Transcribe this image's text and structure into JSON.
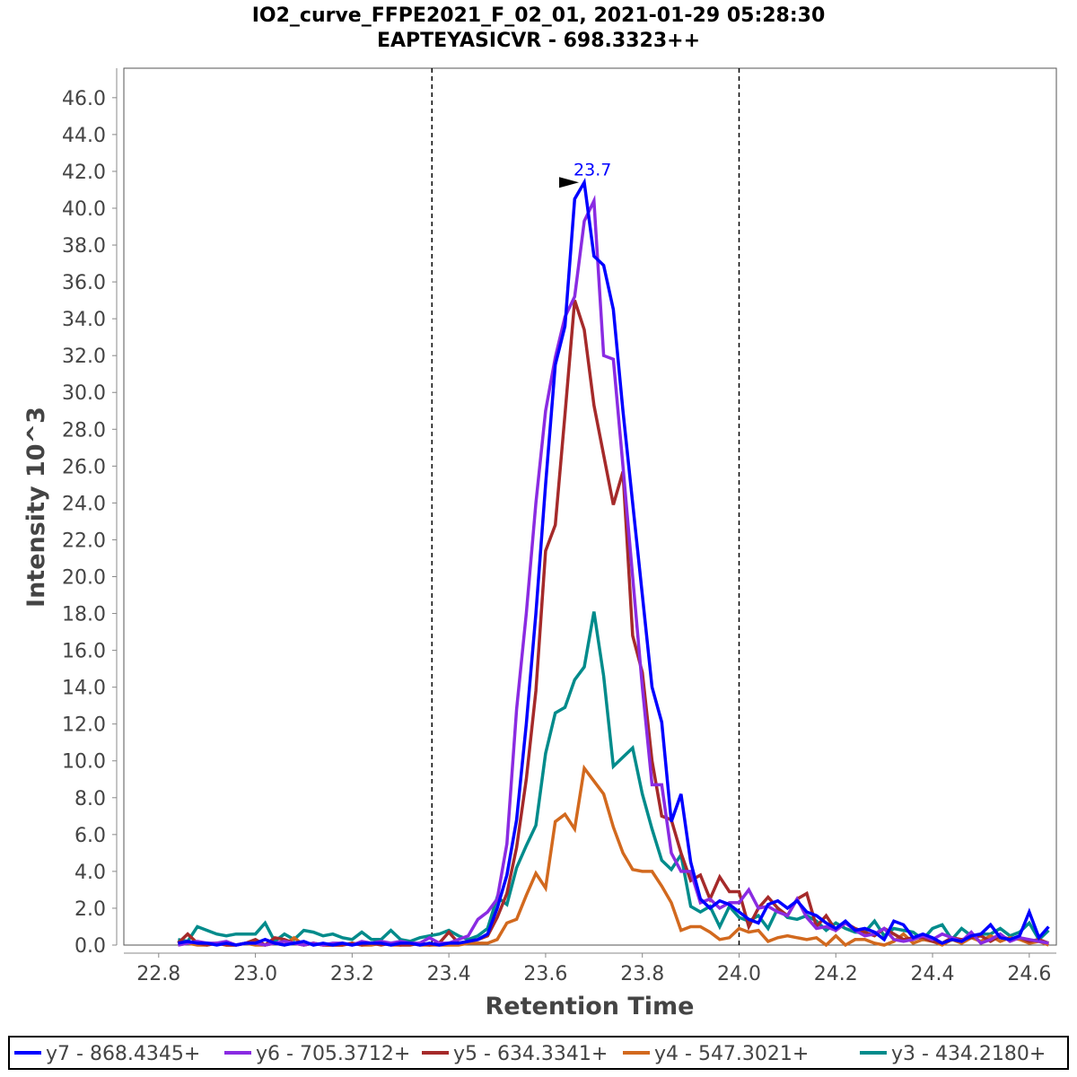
{
  "chart_data": {
    "type": "line",
    "title": "IO2_curve_FFPE2021_F_02_01, 2021-01-29 05:28:30",
    "subtitle": "EAPTEYASICVR - 698.3323++",
    "xlabel": "Retention Time",
    "ylabel": "Intensity 10^3",
    "xlim": [
      22.728,
      24.656
    ],
    "ylim": [
      0,
      47.6
    ],
    "x_ticks": [
      "22.8",
      "23.0",
      "23.2",
      "23.4",
      "23.6",
      "23.8",
      "24.0",
      "24.2",
      "24.4",
      "24.6"
    ],
    "y_ticks": [
      "0.0",
      "2.0",
      "4.0",
      "6.0",
      "8.0",
      "10.0",
      "12.0",
      "14.0",
      "16.0",
      "18.0",
      "20.0",
      "22.0",
      "24.0",
      "26.0",
      "28.0",
      "30.0",
      "32.0",
      "34.0",
      "36.0",
      "38.0",
      "40.0",
      "42.0",
      "44.0",
      "46.0"
    ],
    "grid": false,
    "legend_position": "bottom",
    "x_start": 22.84,
    "x_step": 0.02,
    "boundaries": [
      23.365,
      24.0
    ],
    "annotation": {
      "text": "23.7",
      "x": 23.68,
      "y": 41.4,
      "color": "#0000ff"
    },
    "series": [
      {
        "name": "y7 - 868.4345+",
        "color": "#0000ff",
        "values": [
          0.1,
          0.2,
          0.1,
          0.1,
          0.0,
          0.1,
          0.0,
          0.1,
          0.1,
          0.3,
          0.1,
          0.0,
          0.1,
          0.2,
          0.0,
          0.1,
          0.0,
          0.1,
          0.0,
          0.1,
          0.1,
          0.1,
          0.0,
          0.1,
          0.1,
          0.0,
          0.1,
          0.0,
          0.1,
          0.1,
          0.2,
          0.3,
          0.6,
          2.0,
          3.8,
          6.8,
          12.0,
          18.0,
          25.0,
          31.5,
          33.6,
          40.5,
          41.4,
          37.4,
          36.9,
          34.5,
          29,
          24,
          19,
          14,
          12.1,
          6.7,
          8.2,
          4.5,
          2.5,
          2.0,
          2.4,
          2.2,
          1.8,
          1.4,
          1.2,
          2.2,
          2.4,
          2.0,
          2.4,
          1.8,
          1.6,
          1.2,
          0.9,
          1.3,
          0.8,
          0.9,
          0.7,
          0.3,
          1.3,
          1.1,
          0.4,
          0.6,
          0.4,
          0.1,
          0.3,
          0.2,
          0.5,
          0.6,
          1.1,
          0.4,
          0.3,
          0.5,
          1.8,
          0.4,
          1.0
        ]
      },
      {
        "name": "y6 - 705.3712+",
        "color": "#8a2be2",
        "values": [
          0.0,
          0.1,
          0.2,
          0.1,
          0.1,
          0.2,
          0.0,
          0.1,
          0.1,
          0.0,
          0.1,
          0.2,
          0.1,
          0.0,
          0.1,
          0.0,
          0.1,
          0.1,
          0.0,
          0.2,
          0.1,
          0.2,
          0.1,
          0.2,
          0.1,
          0.1,
          0.4,
          0.1,
          0.1,
          0.3,
          0.5,
          1.4,
          1.8,
          2.5,
          5.5,
          12.8,
          18,
          24,
          29,
          31.9,
          34.1,
          35.2,
          39.3,
          40.4,
          32.0,
          31.8,
          26,
          20,
          14,
          8.7,
          8.7,
          5.0,
          4.0,
          4.0,
          2.3,
          2.5,
          2.0,
          2.3,
          2.3,
          3.0,
          2.0,
          2.1,
          1.8,
          1.6,
          2.5,
          1.5,
          0.9,
          1.0,
          0.8,
          1.2,
          0.8,
          0.5,
          0.6,
          0.9,
          0.3,
          0.2,
          0.3,
          0.5,
          0.3,
          0.6,
          0.4,
          0.2,
          0.7,
          0.1,
          0.3,
          0.6,
          0.2,
          0.4,
          0.3,
          0.2,
          0.1
        ]
      },
      {
        "name": "y5 - 634.3341+",
        "color": "#a52a2a",
        "values": [
          0.1,
          0.6,
          0.1,
          0.0,
          0.1,
          0.0,
          0.0,
          0.1,
          0.3,
          0.0,
          0.4,
          0.3,
          0.1,
          0.0,
          0.1,
          0.0,
          0.0,
          0.0,
          0.1,
          0.0,
          0.1,
          0.0,
          0.1,
          0.0,
          0.0,
          0.1,
          0.0,
          0.1,
          0.7,
          0.1,
          0.2,
          0.3,
          0.5,
          1.5,
          2.8,
          5.3,
          9.0,
          13.8,
          21.4,
          22.8,
          28.8,
          35.0,
          33.4,
          29.3,
          26.6,
          23.9,
          25.7,
          16.8,
          14.8,
          10.0,
          7.0,
          6.8,
          5.0,
          3.5,
          3.8,
          2.5,
          3.7,
          2.9,
          2.9,
          1.0,
          2.0,
          2.6,
          2.0,
          1.6,
          2.5,
          2.8,
          1.0,
          1.6,
          0.8,
          1.2,
          0.9,
          0.7,
          0.5,
          0.9,
          0.6,
          0.3,
          0.4,
          0.4,
          0.2,
          0.1,
          0.4,
          0.3,
          0.4,
          0.5,
          0.2,
          0.5,
          0.3,
          0.4,
          0.2,
          0.3,
          0.1
        ]
      },
      {
        "name": "y4 - 547.3021+",
        "color": "#d2691e",
        "values": [
          0.0,
          0.1,
          0.0,
          0.0,
          0.1,
          0.0,
          0.0,
          0.1,
          0.0,
          0.0,
          0.1,
          0.0,
          0.4,
          0.0,
          0.1,
          0.0,
          0.0,
          0.0,
          0.1,
          0.0,
          0.0,
          0.1,
          0.0,
          0.0,
          0.1,
          0.0,
          0.0,
          0.0,
          0.0,
          0.0,
          0.1,
          0.1,
          0.1,
          0.3,
          1.2,
          1.4,
          2.7,
          3.9,
          3.1,
          6.7,
          7.1,
          6.3,
          9.6,
          8.9,
          8.2,
          6.4,
          5.0,
          4.1,
          4.0,
          4.0,
          3.2,
          2.3,
          0.8,
          1.0,
          1.0,
          0.7,
          0.3,
          0.4,
          0.9,
          0.7,
          0.8,
          0.2,
          0.4,
          0.5,
          0.4,
          0.3,
          0.4,
          0.0,
          0.5,
          0.0,
          0.3,
          0.3,
          0.1,
          0.0,
          0.2,
          0.6,
          0.1,
          0.3,
          0.2,
          0.0,
          0.3,
          0.1,
          0.4,
          0.2,
          0.5,
          0.2,
          0.4,
          0.3,
          0.1,
          0.2,
          0.0
        ]
      },
      {
        "name": "y3 - 434.2180+",
        "color": "#008b8b",
        "values": [
          0.3,
          0.2,
          1.0,
          0.8,
          0.6,
          0.5,
          0.6,
          0.6,
          0.6,
          1.2,
          0.2,
          0.6,
          0.3,
          0.8,
          0.7,
          0.5,
          0.6,
          0.4,
          0.3,
          0.7,
          0.3,
          0.3,
          0.8,
          0.3,
          0.2,
          0.4,
          0.5,
          0.6,
          0.8,
          0.5,
          0.3,
          0.5,
          0.9,
          2.6,
          2.2,
          4.2,
          5.4,
          6.5,
          10.4,
          12.6,
          12.9,
          14.4,
          15.1,
          18.1,
          14.6,
          9.7,
          10.2,
          10.7,
          8.2,
          6.3,
          4.6,
          4.1,
          4.9,
          2.1,
          1.8,
          2.1,
          1.0,
          2.1,
          1.5,
          1.3,
          1.6,
          0.9,
          2.0,
          1.5,
          1.4,
          1.6,
          1.3,
          0.8,
          1.2,
          0.9,
          0.7,
          0.7,
          1.3,
          0.5,
          0.9,
          0.8,
          0.7,
          0.3,
          0.9,
          1.1,
          0.3,
          0.9,
          0.5,
          0.6,
          0.6,
          0.9,
          0.5,
          0.7,
          1.2,
          0.3,
          0.8
        ]
      }
    ]
  }
}
